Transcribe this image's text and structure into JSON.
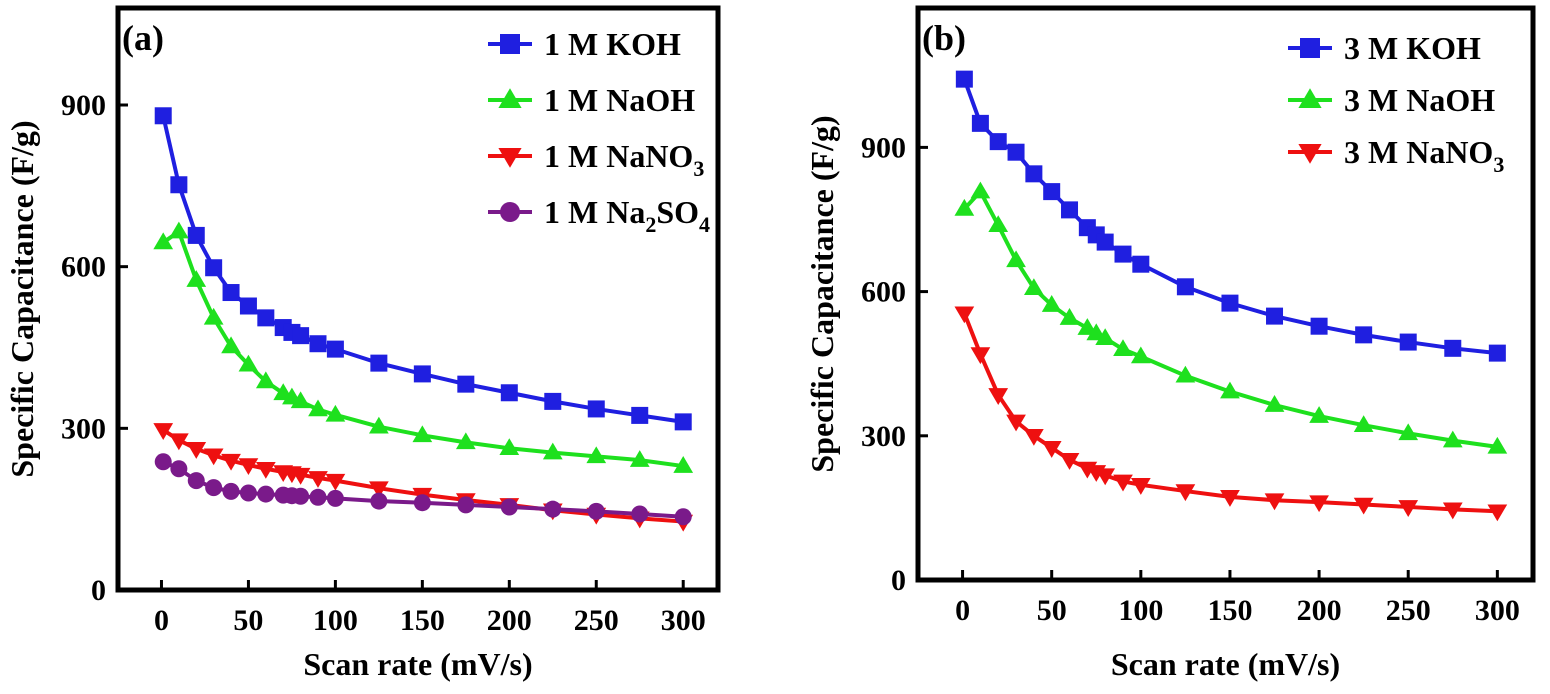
{
  "chart_data": [
    {
      "type": "line",
      "panel_label": "(a)",
      "xlabel": "Scan rate (mV/s)",
      "ylabel": "Specific Capacitance (F/g)",
      "xlim": [
        -25,
        320
      ],
      "ylim": [
        0,
        1080
      ],
      "xticks": [
        0,
        50,
        100,
        150,
        200,
        250,
        300
      ],
      "yticks": [
        0,
        300,
        600,
        900
      ],
      "legend_position": "top-right",
      "series": [
        {
          "name": "1 M KOH",
          "name_main": "1 M KOH",
          "name_sub": "",
          "name_tail": "",
          "color": "#1f1fe0",
          "marker": "square",
          "x": [
            1,
            10,
            20,
            30,
            40,
            50,
            60,
            70,
            75,
            80,
            90,
            100,
            125,
            150,
            175,
            200,
            225,
            250,
            275,
            300
          ],
          "y": [
            880,
            752,
            658,
            598,
            552,
            527,
            505,
            487,
            478,
            472,
            457,
            447,
            421,
            401,
            382,
            366,
            350,
            336,
            324,
            312
          ]
        },
        {
          "name": "1 M NaOH",
          "name_main": "1 M NaOH",
          "name_sub": "",
          "name_tail": "",
          "color": "#1ee01e",
          "marker": "triangle-up",
          "x": [
            1,
            10,
            20,
            30,
            40,
            50,
            60,
            70,
            75,
            80,
            90,
            100,
            125,
            150,
            175,
            200,
            225,
            250,
            275,
            300
          ],
          "y": [
            645,
            665,
            575,
            505,
            452,
            418,
            387,
            365,
            357,
            350,
            335,
            325,
            303,
            287,
            274,
            263,
            255,
            248,
            241,
            230
          ]
        },
        {
          "name": "1 M NaNO3",
          "name_main": "1 M NaNO",
          "name_sub": "3",
          "name_tail": "",
          "color": "#ee1010",
          "marker": "triangle-down",
          "x": [
            1,
            10,
            20,
            30,
            40,
            50,
            60,
            70,
            75,
            80,
            90,
            100,
            125,
            150,
            175,
            200,
            225,
            250,
            275,
            300
          ],
          "y": [
            297,
            278,
            262,
            250,
            240,
            232,
            225,
            219,
            217,
            214,
            208,
            203,
            189,
            177,
            167,
            158,
            148,
            140,
            133,
            127
          ]
        },
        {
          "name": "1 M Na2SO4",
          "name_main": "1 M Na",
          "name_sub": "2",
          "name_tail": "SO",
          "name_sub2": "4",
          "color": "#7a1a8a",
          "marker": "circle",
          "x": [
            1,
            10,
            20,
            30,
            40,
            50,
            60,
            70,
            75,
            80,
            90,
            100,
            125,
            150,
            175,
            200,
            225,
            250,
            275,
            300
          ],
          "y": [
            238,
            225,
            203,
            190,
            183,
            180,
            178,
            176,
            175,
            174,
            172,
            170,
            165,
            162,
            158,
            154,
            150,
            146,
            141,
            136
          ]
        }
      ]
    },
    {
      "type": "line",
      "panel_label": "(b)",
      "xlabel": "Scan rate (mV/s)",
      "ylabel": "Specific Capacitance (F/g)",
      "xlim": [
        -25,
        320
      ],
      "ylim": [
        0,
        1190
      ],
      "xticks": [
        0,
        50,
        100,
        150,
        200,
        250,
        300
      ],
      "yticks": [
        0,
        300,
        600,
        900
      ],
      "legend_position": "top-right",
      "series": [
        {
          "name": "3 M KOH",
          "name_main": "3 M KOH",
          "name_sub": "",
          "name_tail": "",
          "color": "#1f1fe0",
          "marker": "square",
          "x": [
            1,
            10,
            20,
            30,
            40,
            50,
            60,
            70,
            75,
            80,
            90,
            100,
            125,
            150,
            175,
            200,
            225,
            250,
            275,
            300
          ],
          "y": [
            1042,
            950,
            912,
            890,
            845,
            808,
            770,
            733,
            718,
            703,
            678,
            657,
            610,
            576,
            549,
            528,
            510,
            495,
            482,
            472
          ]
        },
        {
          "name": "3 M NaOH",
          "name_main": "3 M NaOH",
          "name_sub": "",
          "name_tail": "",
          "color": "#1ee01e",
          "marker": "triangle-up",
          "x": [
            1,
            10,
            20,
            30,
            40,
            50,
            60,
            70,
            75,
            80,
            90,
            100,
            125,
            150,
            175,
            200,
            225,
            250,
            275,
            300
          ],
          "y": [
            772,
            808,
            738,
            665,
            607,
            572,
            545,
            524,
            513,
            503,
            480,
            465,
            425,
            392,
            364,
            341,
            322,
            305,
            290,
            277
          ]
        },
        {
          "name": "3 M NaNO3",
          "name_main": "3 M NaNO",
          "name_sub": "3",
          "name_tail": "",
          "color": "#ee1010",
          "marker": "triangle-down",
          "x": [
            1,
            10,
            20,
            30,
            40,
            50,
            60,
            70,
            75,
            80,
            90,
            100,
            125,
            150,
            175,
            200,
            225,
            250,
            275,
            300
          ],
          "y": [
            555,
            470,
            385,
            330,
            300,
            275,
            250,
            232,
            225,
            218,
            205,
            198,
            185,
            173,
            166,
            162,
            157,
            152,
            147,
            143
          ]
        }
      ]
    }
  ]
}
